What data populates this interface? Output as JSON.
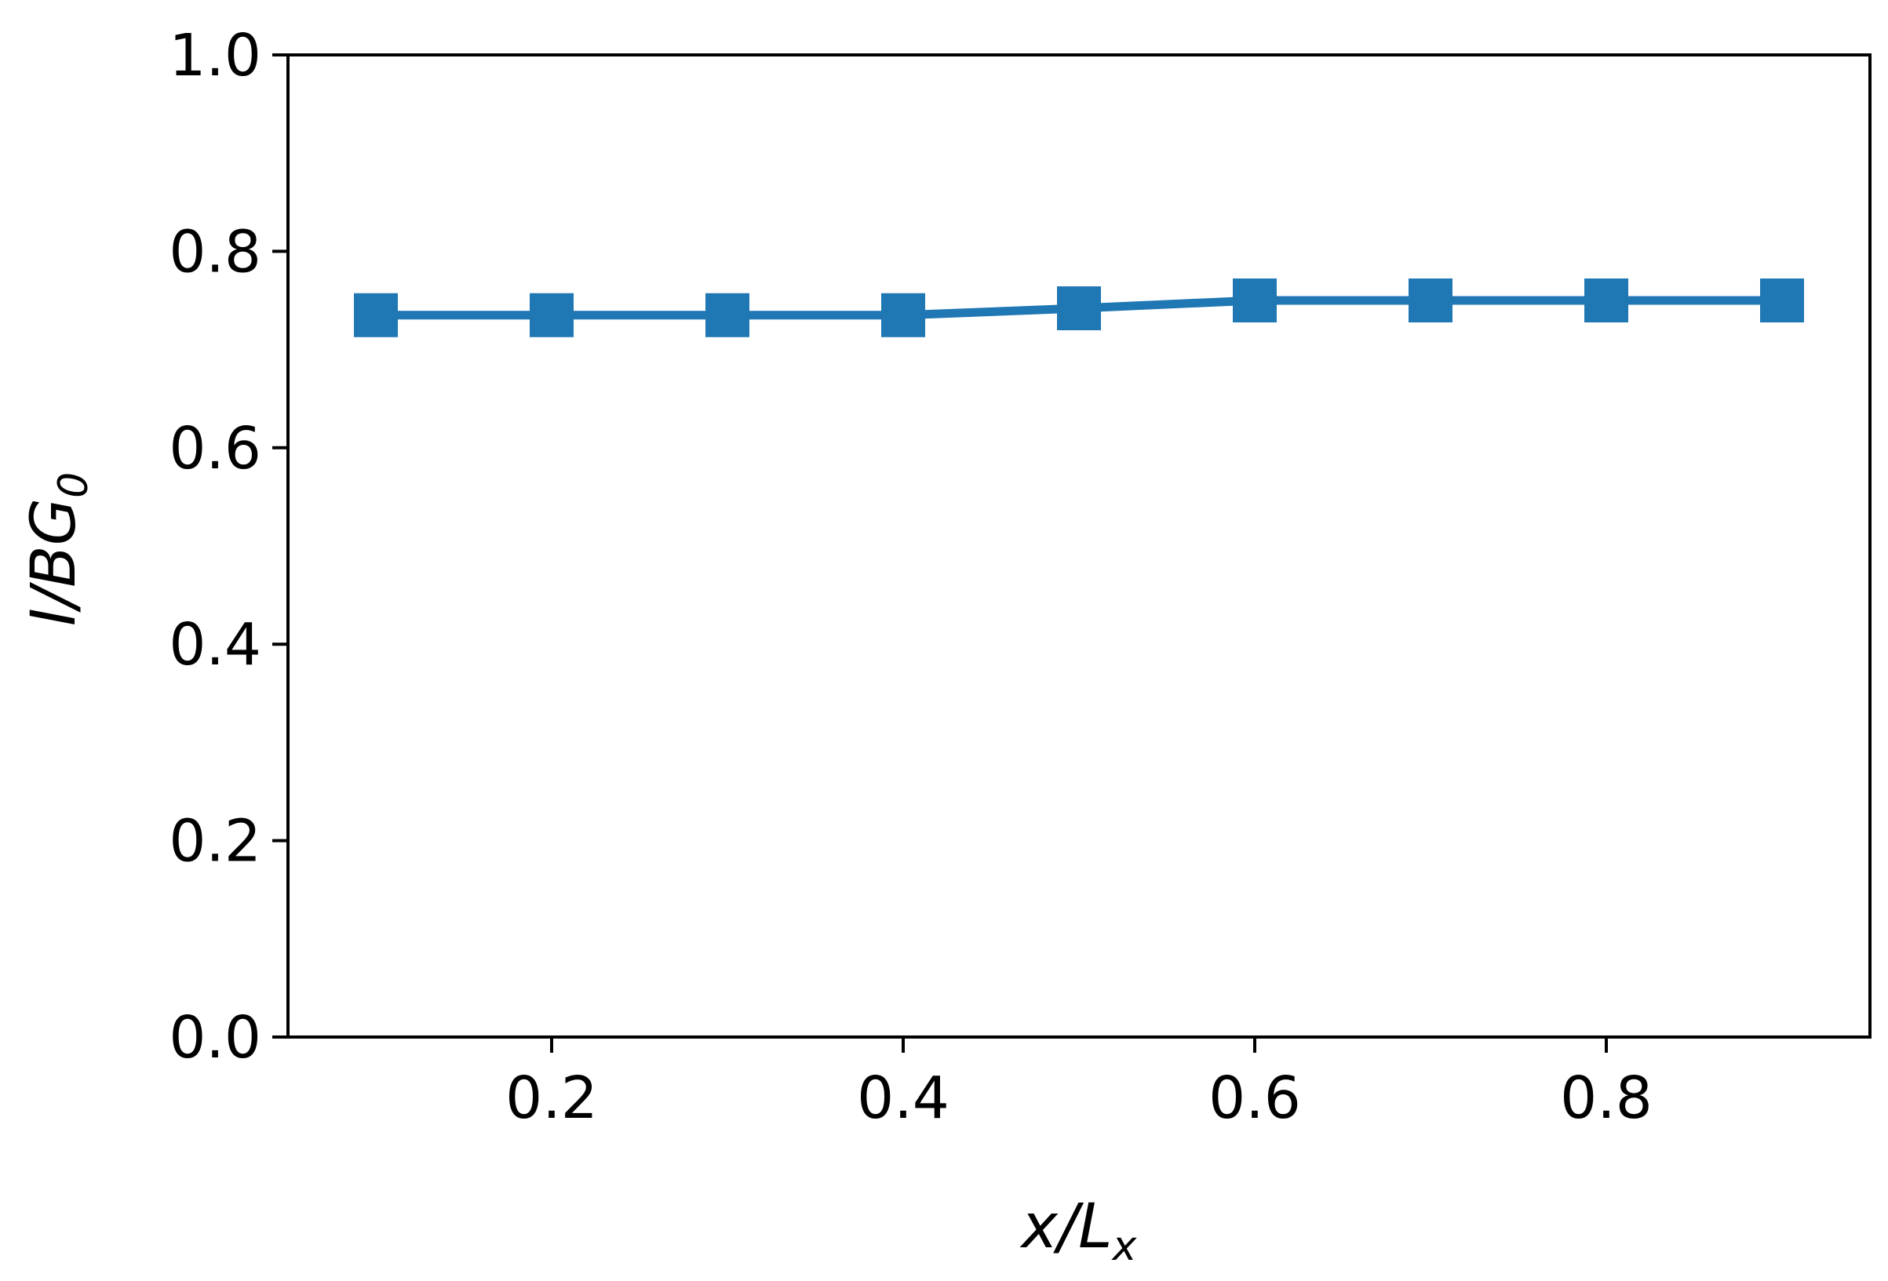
{
  "chart_data": {
    "type": "line",
    "title": "",
    "xlabel": {
      "main": "x/L",
      "sub": "x"
    },
    "ylabel": {
      "main": "I/BG",
      "sub": "0"
    },
    "xlim": [
      0.05,
      0.95
    ],
    "ylim": [
      0.0,
      1.0
    ],
    "x_ticks": [
      0.2,
      0.4,
      0.6,
      0.8
    ],
    "x_tick_labels": [
      "0.2",
      "0.4",
      "0.6",
      "0.8"
    ],
    "y_ticks": [
      0.0,
      0.2,
      0.4,
      0.6,
      0.8,
      1.0
    ],
    "y_tick_labels": [
      "0.0",
      "0.2",
      "0.4",
      "0.6",
      "0.8",
      "1.0"
    ],
    "grid": false,
    "legend": "none",
    "series": [
      {
        "color": "#1f77b4",
        "marker": "square",
        "x": [
          0.1,
          0.2,
          0.3,
          0.4,
          0.5,
          0.6,
          0.7,
          0.8,
          0.9
        ],
        "y": [
          0.735,
          0.735,
          0.735,
          0.735,
          0.742,
          0.75,
          0.75,
          0.75,
          0.75
        ]
      }
    ]
  }
}
